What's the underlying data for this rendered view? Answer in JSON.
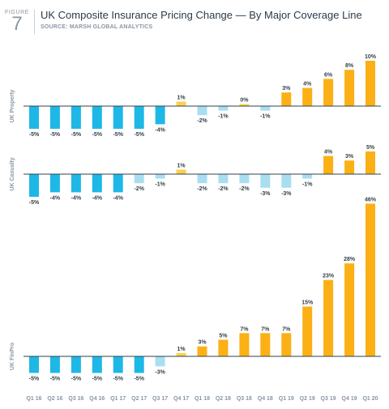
{
  "header": {
    "figure_word": "FIGURE",
    "figure_number": "7",
    "title": "UK Composite Insurance Pricing Change — By Major Coverage Line",
    "source": "SOURCE: MARSH GLOBAL ANALYTICS"
  },
  "colors": {
    "decrease_dark": "#1eb8e6",
    "decrease_light": "#a9def1",
    "increase_light": "#fbd24d",
    "increase_dark": "#fbb015",
    "label": "#333f4a",
    "axis_label": "#8a96a3",
    "baseline": "#333f4a"
  },
  "chart_data": {
    "type": "bar",
    "categories": [
      "Q1 16",
      "Q2 16",
      "Q3 16",
      "Q4 16",
      "Q1 17",
      "Q2 17",
      "Q3 17",
      "Q4 17",
      "Q1 18",
      "Q2 18",
      "Q3 18",
      "Q4 18",
      "Q1 19",
      "Q2 19",
      "Q3 19",
      "Q4 19",
      "Q1 20"
    ],
    "series": [
      {
        "name": "UK Property",
        "values": [
          -5,
          -5,
          -5,
          -5,
          -5,
          -5,
          -4,
          1,
          -2,
          -1,
          0,
          -1,
          3,
          4,
          6,
          8,
          10
        ]
      },
      {
        "name": "UK Casualty",
        "values": [
          -5,
          -4,
          -4,
          -4,
          -4,
          -2,
          -1,
          1,
          -2,
          -2,
          -2,
          -3,
          -3,
          -1,
          4,
          3,
          5
        ]
      },
      {
        "name": "UK FinPro",
        "values": [
          -5,
          -5,
          -5,
          -5,
          -5,
          -5,
          -3,
          1,
          3,
          5,
          7,
          7,
          7,
          15,
          23,
          28,
          46
        ]
      }
    ],
    "value_suffix": "%"
  }
}
